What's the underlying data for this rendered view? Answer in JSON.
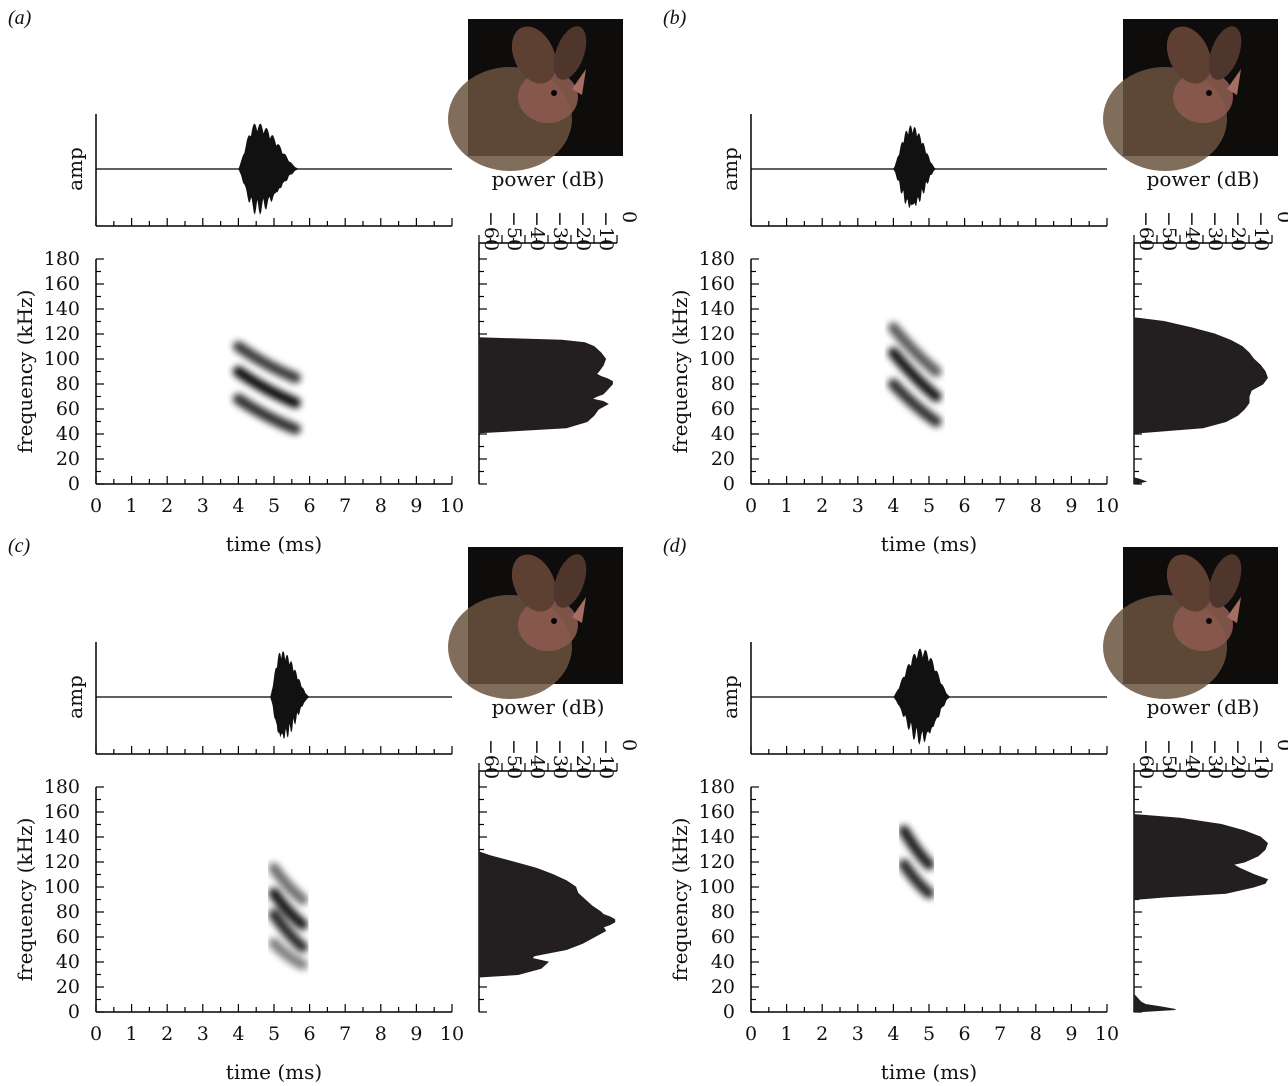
{
  "figure": {
    "shared_axes": {
      "time_label": "time (ms)",
      "frequency_label": "frequency (kHz)",
      "amplitude_label": "amp",
      "power_label": "power (dB)",
      "time_ticks": [
        "0",
        "1",
        "2",
        "3",
        "4",
        "5",
        "6",
        "7",
        "8",
        "9",
        "10"
      ],
      "frequency_ticks": [
        "0",
        "20",
        "40",
        "60",
        "80",
        "100",
        "120",
        "140",
        "160",
        "180"
      ],
      "power_ticks": [
        "−60",
        "−50",
        "−40",
        "−30",
        "−20",
        "−10",
        "0"
      ]
    },
    "photo_colors": {
      "background": "#0e0d0c",
      "fur": "#6b5340",
      "face": "#8a5a4e"
    }
  },
  "chart_data": [
    {
      "panel": "(a)",
      "type": "spectrogram",
      "xlabel": "time (ms)",
      "ylabel": "frequency (kHz)",
      "xlim": [
        0,
        10
      ],
      "ylim": [
        0,
        180
      ],
      "call_time_ms": [
        4.0,
        5.7
      ],
      "harmonics": [
        {
          "t_start": 4.0,
          "t_end": 5.6,
          "f_start": 110,
          "f_end": 85,
          "intensity": 0.75
        },
        {
          "t_start": 4.0,
          "t_end": 5.6,
          "f_start": 90,
          "f_end": 65,
          "intensity": 1.0
        },
        {
          "t_start": 4.0,
          "t_end": 5.6,
          "f_start": 68,
          "f_end": 44,
          "intensity": 0.8
        }
      ],
      "waveform": {
        "ylabel": "amp",
        "t_start": 4.0,
        "t_end": 5.7,
        "peak_time": 4.5,
        "relative_amplitude": 0.9
      },
      "power_spectrum": {
        "xlabel": "power (dB)",
        "xlim": [
          -60,
          0
        ],
        "frequency_khz": [
          41,
          45,
          50,
          55,
          60,
          62,
          64,
          66,
          68,
          70,
          72,
          74,
          76,
          78,
          80,
          82,
          84,
          86,
          88,
          90,
          95,
          100,
          105,
          110,
          113,
          115,
          117
        ],
        "power_db": [
          -60,
          -22,
          -13,
          -10,
          -8,
          -6,
          -4,
          -6,
          -11,
          -9,
          -6,
          -5,
          -4,
          -3,
          -2,
          -2,
          -4,
          -7,
          -9,
          -8,
          -6,
          -5,
          -7,
          -10,
          -14,
          -24,
          -60
        ]
      }
    },
    {
      "panel": "(b)",
      "type": "spectrogram",
      "xlabel": "time (ms)",
      "ylabel": "frequency (kHz)",
      "xlim": [
        0,
        10
      ],
      "ylim": [
        0,
        180
      ],
      "call_time_ms": [
        4.0,
        5.2
      ],
      "harmonics": [
        {
          "t_start": 4.0,
          "t_end": 5.2,
          "f_start": 125,
          "f_end": 90,
          "intensity": 0.55
        },
        {
          "t_start": 4.0,
          "t_end": 5.2,
          "f_start": 105,
          "f_end": 70,
          "intensity": 0.95
        },
        {
          "t_start": 4.0,
          "t_end": 5.2,
          "f_start": 80,
          "f_end": 50,
          "intensity": 0.8
        }
      ],
      "waveform": {
        "ylabel": "amp",
        "t_start": 4.0,
        "t_end": 5.2,
        "peak_time": 4.5,
        "relative_amplitude": 0.85
      },
      "power_spectrum": {
        "xlabel": "power (dB)",
        "xlim": [
          -60,
          0
        ],
        "frequency_khz": [
          0,
          2,
          4,
          5,
          6,
          8,
          10,
          20,
          30,
          40,
          41,
          45,
          50,
          55,
          60,
          65,
          70,
          75,
          80,
          85,
          90,
          95,
          100,
          105,
          110,
          115,
          120,
          125,
          130,
          133
        ],
        "power_db": [
          -60,
          -55,
          -58,
          -60,
          -60,
          -60,
          -60,
          -60,
          -60,
          -60,
          -58,
          -30,
          -20,
          -15,
          -12,
          -10,
          -10,
          -9,
          -4,
          -2,
          -3,
          -5,
          -8,
          -10,
          -13,
          -18,
          -25,
          -35,
          -47,
          -60
        ]
      }
    },
    {
      "panel": "(c)",
      "type": "spectrogram",
      "xlabel": "time (ms)",
      "ylabel": "frequency (kHz)",
      "xlim": [
        0,
        10
      ],
      "ylim": [
        0,
        180
      ],
      "call_time_ms": [
        4.9,
        6.0
      ],
      "harmonics": [
        {
          "t_start": 5.0,
          "t_end": 5.8,
          "f_start": 115,
          "f_end": 90,
          "intensity": 0.45
        },
        {
          "t_start": 5.0,
          "t_end": 5.8,
          "f_start": 95,
          "f_end": 70,
          "intensity": 0.95
        },
        {
          "t_start": 5.0,
          "t_end": 5.8,
          "f_start": 78,
          "f_end": 52,
          "intensity": 0.85
        },
        {
          "t_start": 5.0,
          "t_end": 5.8,
          "f_start": 55,
          "f_end": 38,
          "intensity": 0.35
        }
      ],
      "waveform": {
        "ylabel": "amp",
        "t_start": 4.9,
        "t_end": 6.0,
        "peak_time": 5.2,
        "relative_amplitude": 0.9
      },
      "power_spectrum": {
        "xlabel": "power (dB)",
        "xlim": [
          -60,
          0
        ],
        "frequency_khz": [
          28,
          30,
          35,
          40,
          43,
          45,
          50,
          55,
          60,
          65,
          68,
          70,
          72,
          74,
          76,
          78,
          80,
          85,
          90,
          95,
          100,
          105,
          110,
          115,
          120,
          125,
          128
        ],
        "power_db": [
          -60,
          -43,
          -33,
          -30,
          -37,
          -36,
          -22,
          -15,
          -10,
          -5,
          -6,
          -3,
          -1,
          -1,
          -3,
          -6,
          -7,
          -11,
          -14,
          -17,
          -18,
          -22,
          -28,
          -35,
          -45,
          -55,
          -60
        ]
      }
    },
    {
      "panel": "(d)",
      "type": "spectrogram",
      "xlabel": "time (ms)",
      "ylabel": "frequency (kHz)",
      "xlim": [
        0,
        10
      ],
      "ylim": [
        0,
        180
      ],
      "call_time_ms": [
        4.0,
        5.6
      ],
      "harmonics": [
        {
          "t_start": 4.3,
          "t_end": 5.0,
          "f_start": 145,
          "f_end": 118,
          "intensity": 0.9
        },
        {
          "t_start": 4.3,
          "t_end": 5.0,
          "f_start": 118,
          "f_end": 95,
          "intensity": 0.85
        }
      ],
      "waveform": {
        "ylabel": "amp",
        "t_start": 4.0,
        "t_end": 5.6,
        "peak_time": 4.8,
        "relative_amplitude": 0.95
      },
      "power_spectrum": {
        "xlabel": "power (dB)",
        "xlim": [
          -60,
          0
        ],
        "frequency_khz": [
          0,
          2,
          4,
          6,
          8,
          10,
          14,
          20,
          40,
          60,
          80,
          90,
          92,
          95,
          100,
          103,
          106,
          110,
          115,
          118,
          120,
          125,
          130,
          135,
          140,
          145,
          150,
          155,
          158
        ],
        "power_db": [
          -60,
          -42,
          -48,
          -55,
          -57,
          -58,
          -60,
          -60,
          -60,
          -60,
          -60,
          -60,
          -47,
          -20,
          -8,
          -3,
          -2,
          -8,
          -14,
          -17,
          -12,
          -6,
          -3,
          -2,
          -5,
          -12,
          -22,
          -40,
          -60
        ]
      }
    }
  ]
}
